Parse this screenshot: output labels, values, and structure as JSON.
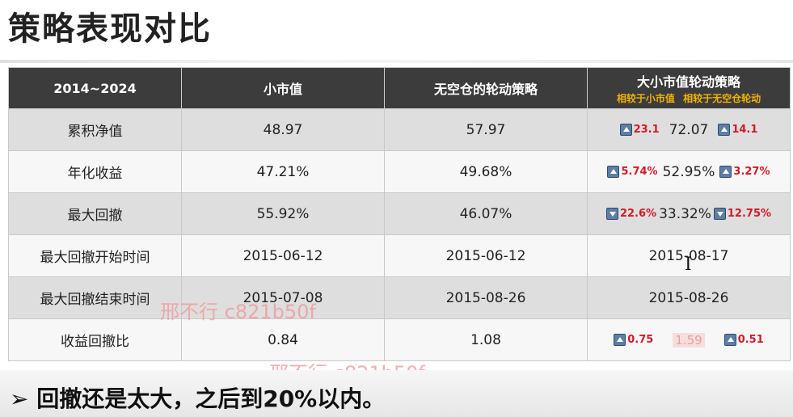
{
  "page": {
    "title": "策略表现对比",
    "bullet": "➢ 回撤还是太大，之后到20%以内。"
  },
  "table": {
    "headers": [
      "2014~2024",
      "小市值",
      "无空仓的轮动策略",
      "大小市值轮动策略"
    ],
    "subheader": "相较于小市值 相较于无空仓轮动",
    "rows": [
      {
        "label": "累积净值",
        "small_cap": "48.97",
        "no_empty": "57.97",
        "rotation": {
          "left_dir": "up",
          "left": "23.1",
          "value": "72.07",
          "right_dir": "up",
          "right": "14.1"
        }
      },
      {
        "label": "年化收益",
        "small_cap": "47.21%",
        "no_empty": "49.68%",
        "rotation": {
          "left_dir": "up",
          "left": "5.74%",
          "value": "52.95%",
          "right_dir": "up",
          "right": "3.27%"
        }
      },
      {
        "label": "最大回撤",
        "small_cap": "55.92%",
        "no_empty": "46.07%",
        "rotation": {
          "left_dir": "down",
          "left": "22.6%",
          "value": "33.32%",
          "right_dir": "down",
          "right": "12.75%"
        }
      },
      {
        "label": "最大回撤开始时间",
        "small_cap": "2015-06-12",
        "no_empty": "2015-06-12",
        "rotation_text": "2015-08-17"
      },
      {
        "label": "最大回撤结束时间",
        "small_cap": "2015-07-08",
        "no_empty": "2015-08-26",
        "rotation_text": "2015-08-26"
      },
      {
        "label": "收益回撤比",
        "small_cap": "0.84",
        "no_empty": "1.08",
        "rotation": {
          "left_dir": "up",
          "left": "0.75",
          "value": "1.59",
          "right_dir": "up",
          "right": "0.51"
        }
      }
    ]
  },
  "watermarks": [
    "邢不行 c821b50f",
    "邢不行 c821b50f"
  ],
  "icons": {
    "up_arrow": "arrow-up-icon",
    "down_arrow": "arrow-down-icon",
    "cursor": "text-cursor-icon"
  },
  "colors": {
    "header_bg": "#3c3c3c",
    "delta_red": "#d31a27",
    "subheader_gold": "#f0b400"
  }
}
